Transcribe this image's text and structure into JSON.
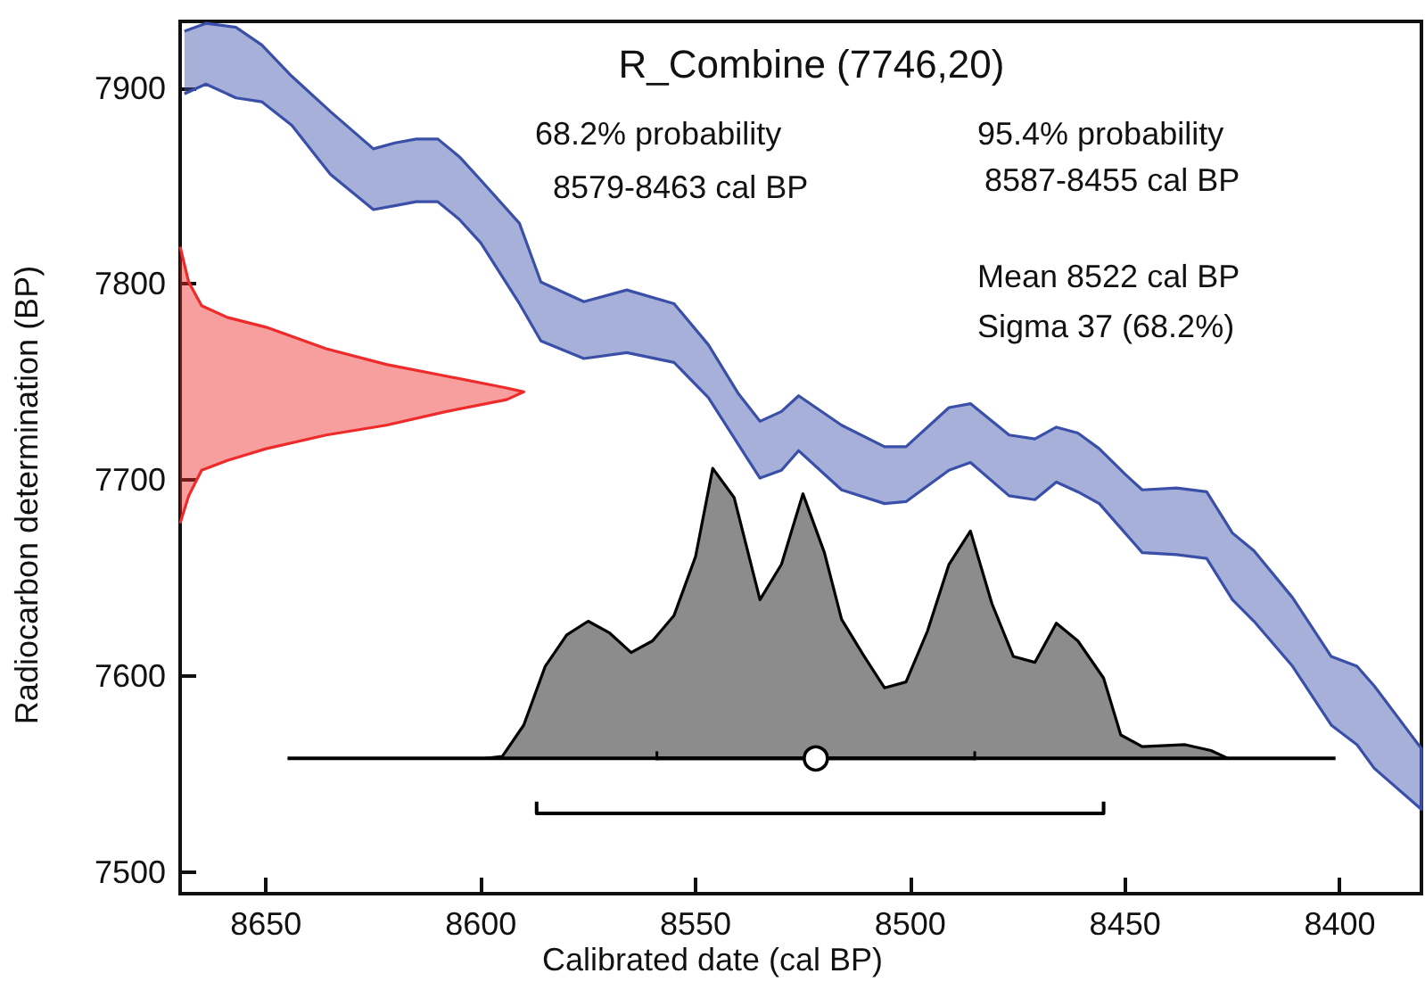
{
  "chart_data": {
    "type": "area",
    "title": "R_Combine (7746,20)",
    "xlabel": "Calibrated date (cal BP)",
    "ylabel": "Radiocarbon determination (BP)",
    "annotations": [
      "68.2% probability",
      "8579-8463 cal BP",
      "95.4% probability",
      "8587-8455 cal BP",
      "Mean 8522 cal BP",
      "Sigma 37 (68.2%)"
    ],
    "xlim": [
      8670,
      8381
    ],
    "xticks": [
      8650,
      8600,
      8550,
      8500,
      8450,
      8400
    ],
    "ylim": [
      7489,
      7934
    ],
    "yticks": [
      7500,
      7600,
      7700,
      7800,
      7900
    ],
    "grid": false,
    "series": [
      {
        "color": "#3a4fa8",
        "x": [
          8669,
          8664,
          8657,
          8651,
          8644,
          8635,
          8625,
          8620,
          8615,
          8610,
          8605,
          8600,
          8591,
          8586,
          8576,
          8566,
          8555,
          8547,
          8540,
          8535,
          8530,
          8526,
          8516,
          8506,
          8501,
          8491,
          8486,
          8477,
          8471,
          8466,
          8461,
          8456,
          8450,
          8446,
          8438,
          8431,
          8425,
          8420,
          8411,
          8402,
          8396,
          8392,
          8381,
          8381,
          8392,
          8396,
          8402,
          8411,
          8420,
          8425,
          8431,
          8438,
          8446,
          8450,
          8456,
          8461,
          8466,
          8471,
          8477,
          8486,
          8491,
          8501,
          8506,
          8516,
          8526,
          8530,
          8535,
          8540,
          8547,
          8555,
          8566,
          8576,
          8586,
          8591,
          8600,
          8605,
          8610,
          8615,
          8620,
          8625,
          8635,
          8644,
          8651,
          8657,
          8664,
          8669
        ],
        "values": [
          7929,
          7933,
          7931,
          7922,
          7906,
          7888,
          7869,
          7872,
          7874,
          7874,
          7865,
          7853,
          7831,
          7801,
          7791,
          7797,
          7790,
          7769,
          7744,
          7730,
          7735,
          7743,
          7728,
          7717,
          7717,
          7737,
          7739,
          7723,
          7721,
          7727,
          7724,
          7716,
          7703,
          7695,
          7696,
          7694,
          7673,
          7664,
          7640,
          7610,
          7605,
          7595,
          7563,
          7532,
          7553,
          7565,
          7575,
          7605,
          7628,
          7639,
          7660,
          7662,
          7663,
          7673,
          7688,
          7694,
          7699,
          7690,
          7692,
          7709,
          7705,
          7689,
          7688,
          7695,
          7715,
          7705,
          7701,
          7718,
          7742,
          7760,
          7765,
          7762,
          7771,
          7790,
          7821,
          7833,
          7842,
          7842,
          7840,
          7838,
          7856,
          7881,
          7893,
          7895,
          7902,
          7897
        ]
      },
      {
        "color": "#ee2a2a",
        "x": [
          8670,
          8668,
          8665,
          8659,
          8650,
          8636,
          8622,
          8608,
          8594,
          8590,
          8594,
          8608,
          8622,
          8636,
          8650,
          8659,
          8665,
          8668,
          8670
        ],
        "values": [
          7819,
          7801,
          7789,
          7783,
          7778,
          7767,
          7759,
          7753,
          7747,
          7745,
          7741,
          7735,
          7728,
          7723,
          7716,
          7710,
          7705,
          7692,
          7678
        ]
      },
      {
        "color": "#000000",
        "x": [
          8599,
          8595,
          8590,
          8585,
          8580,
          8575,
          8570,
          8565,
          8560,
          8555,
          8550,
          8546,
          8541,
          8535,
          8530,
          8525,
          8520,
          8516,
          8511,
          8506,
          8501,
          8496,
          8491,
          8486,
          8481,
          8476,
          8471,
          8466,
          8461,
          8455,
          8451,
          8446,
          8436,
          8430,
          8426
        ],
        "values": [
          7558,
          7559,
          7575,
          7605,
          7621,
          7628,
          7622,
          7612,
          7618,
          7631,
          7661,
          7706,
          7691,
          7639,
          7657,
          7693,
          7663,
          7629,
          7611,
          7594,
          7597,
          7623,
          7657,
          7674,
          7637,
          7610,
          7607,
          7627,
          7618,
          7599,
          7570,
          7564,
          7565,
          7562,
          7558
        ]
      },
      {
        "type": "line",
        "color": "#000000",
        "x": [
          8645,
          8401
        ],
        "values": [
          7558,
          7558
        ]
      },
      {
        "type": "line",
        "color": "#000000",
        "x": [
          8587,
          8587,
          8455,
          8455
        ],
        "values": [
          7536,
          7530,
          7530,
          7536
        ]
      },
      {
        "type": "scatter",
        "marker": "circle",
        "color": "#ffffff",
        "x": [
          8522
        ],
        "values": [
          7558
        ],
        "xerrors": [
          37
        ]
      }
    ],
    "marker": "none"
  }
}
